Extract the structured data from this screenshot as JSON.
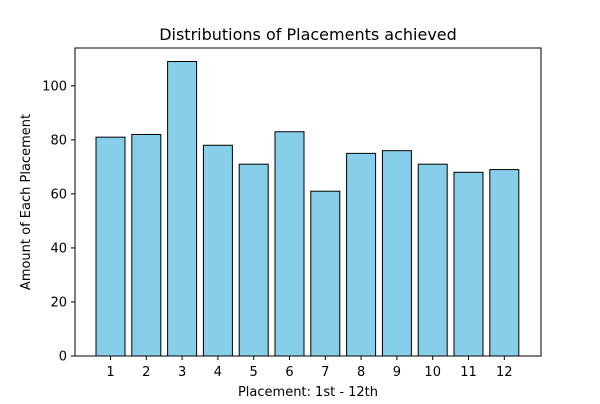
{
  "chart_data": {
    "type": "bar",
    "title": "Distributions of Placements achieved",
    "xlabel": "Placement: 1st - 12th",
    "ylabel": "Amount of Each Placement",
    "categories": [
      "1",
      "2",
      "3",
      "4",
      "5",
      "6",
      "7",
      "8",
      "9",
      "10",
      "11",
      "12"
    ],
    "values": [
      81,
      82,
      109,
      78,
      71,
      83,
      61,
      75,
      76,
      71,
      68,
      69
    ],
    "ylim": [
      0,
      114
    ],
    "yticks": [
      0,
      20,
      40,
      60,
      80,
      100
    ],
    "grid": false,
    "legend": false,
    "colors": {
      "bar_fill": "#87CEEB",
      "bar_edge": "#000000",
      "axis": "#000000",
      "background": "#ffffff"
    }
  }
}
